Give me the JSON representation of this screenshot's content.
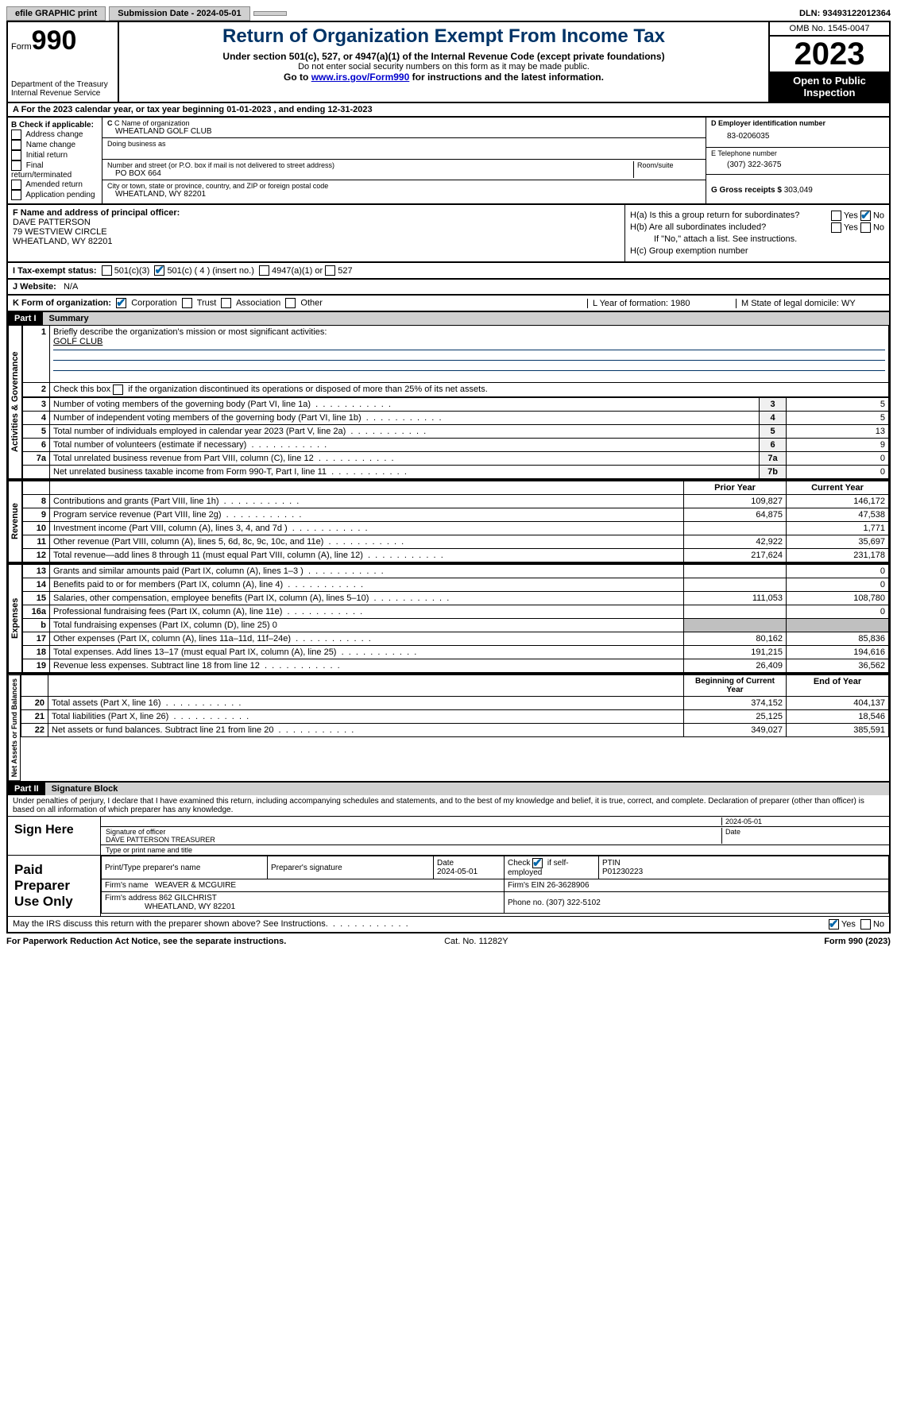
{
  "topbar": {
    "efile": "efile GRAPHIC print",
    "submission": "Submission Date - 2024-05-01",
    "dln": "DLN: 93493122012364"
  },
  "header": {
    "form": "Form",
    "formnum": "990",
    "dept": "Department of the Treasury Internal Revenue Service",
    "title": "Return of Organization Exempt From Income Tax",
    "sub": "Under section 501(c), 527, or 4947(a)(1) of the Internal Revenue Code (except private foundations)",
    "sub2": "Do not enter social security numbers on this form as it may be made public.",
    "sub3_pre": "Go to ",
    "sub3_link": "www.irs.gov/Form990",
    "sub3_post": " for instructions and the latest information.",
    "omb": "OMB No. 1545-0047",
    "year": "2023",
    "inspect": "Open to Public Inspection"
  },
  "taxyear": "A For the 2023 calendar year, or tax year beginning 01-01-2023   , and ending 12-31-2023",
  "b": {
    "label": "B Check if applicable:",
    "opts": [
      "Address change",
      "Name change",
      "Initial return",
      "Final return/terminated",
      "Amended return",
      "Application pending"
    ]
  },
  "c": {
    "name_lbl": "C Name of organization",
    "name": "WHEATLAND GOLF CLUB",
    "dba_lbl": "Doing business as",
    "addr_lbl": "Number and street (or P.O. box if mail is not delivered to street address)",
    "addr": "PO BOX 664",
    "room_lbl": "Room/suite",
    "city_lbl": "City or town, state or province, country, and ZIP or foreign postal code",
    "city": "WHEATLAND, WY  82201"
  },
  "d": {
    "ein_lbl": "D Employer identification number",
    "ein": "83-0206035",
    "tel_lbl": "E Telephone number",
    "tel": "(307) 322-3675",
    "gross_lbl": "G Gross receipts $",
    "gross": "303,049"
  },
  "f": {
    "lbl": "F  Name and address of principal officer:",
    "name": "DAVE PATTERSON",
    "addr1": "79 WESTVIEW CIRCLE",
    "addr2": "WHEATLAND, WY  82201"
  },
  "h": {
    "a": "H(a)  Is this a group return for subordinates?",
    "b": "H(b)  Are all subordinates included?",
    "b2": "If \"No,\" attach a list. See instructions.",
    "c": "H(c)  Group exemption number"
  },
  "i": {
    "lbl": "I   Tax-exempt status:",
    "o1": "501(c)(3)",
    "o2": "501(c) ( 4 ) (insert no.)",
    "o3": "4947(a)(1) or",
    "o4": "527"
  },
  "j": {
    "lbl": "J   Website:",
    "val": "N/A"
  },
  "k": {
    "lbl": "K Form of organization:",
    "opts": [
      "Corporation",
      "Trust",
      "Association",
      "Other"
    ],
    "l": "L Year of formation: 1980",
    "m": "M State of legal domicile: WY"
  },
  "part1": {
    "bar": "Part I",
    "title": "Summary"
  },
  "summary": {
    "sideA": "Activities & Governance",
    "sideR": "Revenue",
    "sideE": "Expenses",
    "sideN": "Net Assets or Fund Balances",
    "l1": "Briefly describe the organization's mission or most significant activities:",
    "l1v": "GOLF CLUB",
    "l2": "Check this box       if the organization discontinued its operations or disposed of more than 25% of its net assets.",
    "rows": [
      {
        "n": "3",
        "t": "Number of voting members of the governing body (Part VI, line 1a)",
        "c": "3",
        "v": "5"
      },
      {
        "n": "4",
        "t": "Number of independent voting members of the governing body (Part VI, line 1b)",
        "c": "4",
        "v": "5"
      },
      {
        "n": "5",
        "t": "Total number of individuals employed in calendar year 2023 (Part V, line 2a)",
        "c": "5",
        "v": "13"
      },
      {
        "n": "6",
        "t": "Total number of volunteers (estimate if necessary)",
        "c": "6",
        "v": "9"
      },
      {
        "n": "7a",
        "t": "Total unrelated business revenue from Part VIII, column (C), line 12",
        "c": "7a",
        "v": "0"
      },
      {
        "n": "",
        "t": "Net unrelated business taxable income from Form 990-T, Part I, line 11",
        "c": "7b",
        "v": "0"
      }
    ],
    "hdr_prior": "Prior Year",
    "hdr_curr": "Current Year",
    "rev": [
      {
        "n": "8",
        "t": "Contributions and grants (Part VIII, line 1h)",
        "p": "109,827",
        "c": "146,172"
      },
      {
        "n": "9",
        "t": "Program service revenue (Part VIII, line 2g)",
        "p": "64,875",
        "c": "47,538"
      },
      {
        "n": "10",
        "t": "Investment income (Part VIII, column (A), lines 3, 4, and 7d )",
        "p": "",
        "c": "1,771"
      },
      {
        "n": "11",
        "t": "Other revenue (Part VIII, column (A), lines 5, 6d, 8c, 9c, 10c, and 11e)",
        "p": "42,922",
        "c": "35,697"
      },
      {
        "n": "12",
        "t": "Total revenue—add lines 8 through 11 (must equal Part VIII, column (A), line 12)",
        "p": "217,624",
        "c": "231,178"
      }
    ],
    "exp": [
      {
        "n": "13",
        "t": "Grants and similar amounts paid (Part IX, column (A), lines 1–3 )",
        "p": "",
        "c": "0"
      },
      {
        "n": "14",
        "t": "Benefits paid to or for members (Part IX, column (A), line 4)",
        "p": "",
        "c": "0"
      },
      {
        "n": "15",
        "t": "Salaries, other compensation, employee benefits (Part IX, column (A), lines 5–10)",
        "p": "111,053",
        "c": "108,780"
      },
      {
        "n": "16a",
        "t": "Professional fundraising fees (Part IX, column (A), line 11e)",
        "p": "",
        "c": "0"
      },
      {
        "n": "b",
        "t": "Total fundraising expenses (Part IX, column (D), line 25) 0",
        "p": "grey",
        "c": "grey"
      },
      {
        "n": "17",
        "t": "Other expenses (Part IX, column (A), lines 11a–11d, 11f–24e)",
        "p": "80,162",
        "c": "85,836"
      },
      {
        "n": "18",
        "t": "Total expenses. Add lines 13–17 (must equal Part IX, column (A), line 25)",
        "p": "191,215",
        "c": "194,616"
      },
      {
        "n": "19",
        "t": "Revenue less expenses. Subtract line 18 from line 12",
        "p": "26,409",
        "c": "36,562"
      }
    ],
    "hdr_beg": "Beginning of Current Year",
    "hdr_end": "End of Year",
    "net": [
      {
        "n": "20",
        "t": "Total assets (Part X, line 16)",
        "p": "374,152",
        "c": "404,137"
      },
      {
        "n": "21",
        "t": "Total liabilities (Part X, line 26)",
        "p": "25,125",
        "c": "18,546"
      },
      {
        "n": "22",
        "t": "Net assets or fund balances. Subtract line 21 from line 20",
        "p": "349,027",
        "c": "385,591"
      }
    ]
  },
  "part2": {
    "bar": "Part II",
    "title": "Signature Block"
  },
  "sig": {
    "declare": "Under penalties of perjury, I declare that I have examined this return, including accompanying schedules and statements, and to the best of my knowledge and belief, it is true, correct, and complete. Declaration of preparer (other than officer) is based on all information of which preparer has any knowledge.",
    "here": "Sign Here",
    "date": "2024-05-01",
    "sig_lbl": "Signature of officer",
    "officer": "DAVE PATTERSON  TREASURER",
    "type_lbl": "Type or print name and title",
    "paid": "Paid Preparer Use Only",
    "p_name_lbl": "Print/Type preparer's name",
    "p_sig_lbl": "Preparer's signature",
    "p_date_lbl": "Date",
    "p_date": "2024-05-01",
    "p_self": "Check        if self-employed",
    "ptin_lbl": "PTIN",
    "ptin": "P01230223",
    "firm_lbl": "Firm's name",
    "firm": "WEAVER & MCGUIRE",
    "fein_lbl": "Firm's EIN",
    "fein": "26-3628906",
    "faddr_lbl": "Firm's address",
    "faddr1": "862 GILCHRIST",
    "faddr2": "WHEATLAND, WY  82201",
    "fphone_lbl": "Phone no.",
    "fphone": "(307) 322-5102",
    "discuss": "May the IRS discuss this return with the preparer shown above? See Instructions."
  },
  "footer": {
    "pra": "For Paperwork Reduction Act Notice, see the separate instructions.",
    "cat": "Cat. No. 11282Y",
    "form": "Form 990 (2023)"
  }
}
